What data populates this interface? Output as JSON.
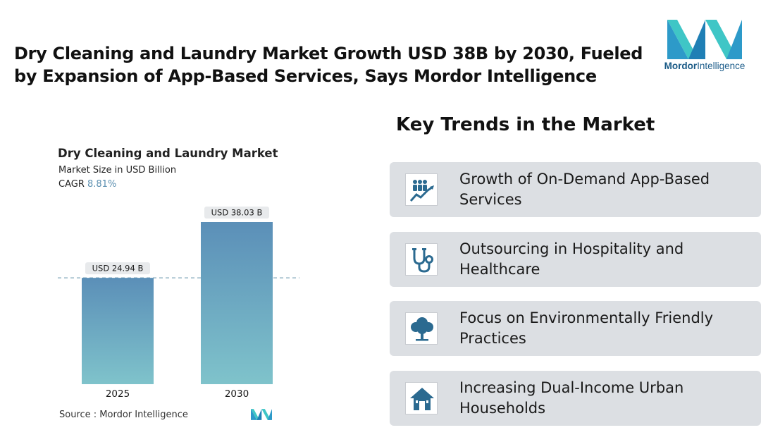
{
  "headline": {
    "line1": "Dry Cleaning and Laundry Market Growth USD 38B by 2030, Fueled",
    "line2": "by Expansion of App-Based Services, Says Mordor Intelligence"
  },
  "logo": {
    "brand": "Mordor",
    "suffix": "Intelligence",
    "colors": [
      "#2d9ac9",
      "#3fc6c6",
      "#1f5f8c"
    ]
  },
  "chart": {
    "title": "Dry Cleaning and Laundry Market",
    "subtitle": "Market Size in USD Billion",
    "cagr_label": "CAGR",
    "cagr_value": "8.81%",
    "source": "Source :  Mordor Intelligence"
  },
  "chart_data": {
    "type": "bar",
    "categories": [
      "2025",
      "2030"
    ],
    "values": [
      24.94,
      38.03
    ],
    "data_labels": [
      "USD 24.94 B",
      "USD 38.03 B"
    ],
    "title": "Dry Cleaning and Laundry Market",
    "ylabel": "Market Size in USD Billion",
    "ylim": [
      0,
      38.03
    ],
    "reference_line": 24.94,
    "bar_gradient": [
      "#5b8fb8",
      "#7fc3cb"
    ],
    "grid": false
  },
  "trends": {
    "title": "Key Trends in the Market",
    "items": [
      {
        "icon": "growth-chart-people-icon",
        "line1": "Growth of On-Demand App-Based",
        "line2": "Services"
      },
      {
        "icon": "stethoscope-icon",
        "line1": "Outsourcing in Hospitality and",
        "line2": "Healthcare"
      },
      {
        "icon": "tree-icon",
        "line1": "Focus on Environmentally Friendly",
        "line2": "Practices"
      },
      {
        "icon": "house-icon",
        "line1": "Increasing Dual-Income Urban",
        "line2": "Households"
      }
    ],
    "icon_color": "#2b6a90",
    "card_color": "#dcdfe3"
  }
}
